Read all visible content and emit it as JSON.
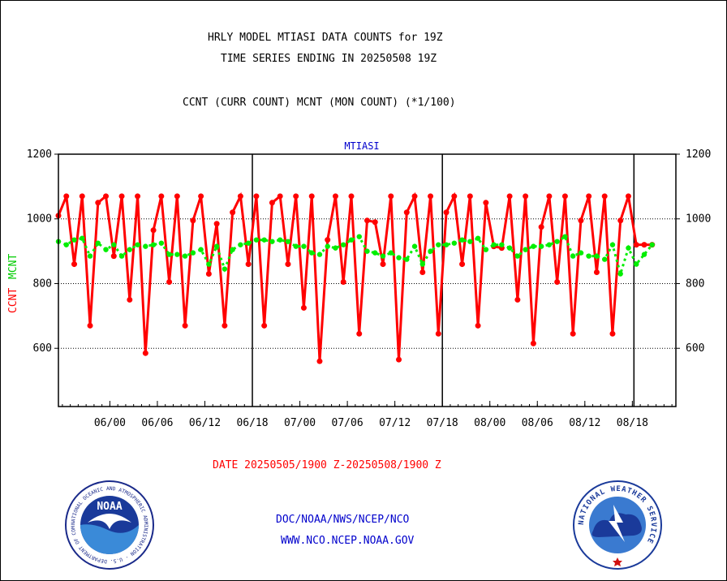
{
  "header": {
    "title_line1": "HRLY MODEL MTIASI DATA COUNTS for 19Z",
    "title_line2": "TIME SERIES ENDING IN 20250508 19Z",
    "subtitle": "CCNT (CURR COUNT) MCNT (MON COUNT) (*1/100)"
  },
  "footer": {
    "date_range": "DATE 20250505/1900 Z-20250508/1900 Z",
    "org_line": "DOC/NOAA/NWS/NCEP/NCO",
    "url_line": "WWW.NCO.NCEP.NOAA.GOV"
  },
  "logos": {
    "noaa_text": "NOAA",
    "noaa_ring": "NATIONAL OCEANIC AND ATMOSPHERIC ADMINISTRATION · U.S. DEPARTMENT OF COMMERCE",
    "nws_ring": "NATIONAL WEATHER SERVICE"
  },
  "colors": {
    "ccnt": "#ff0000",
    "mcnt": "#00ee00",
    "chart_title": "#0000cc",
    "footer_blue": "#0000cc"
  },
  "chart_data": {
    "type": "line",
    "title": "MTIASI",
    "ylabel_left": "CCNT",
    "ylabel_right": "MCNT",
    "ylim": [
      420,
      1200
    ],
    "yticks": [
      600,
      800,
      1000,
      1200
    ],
    "grid_y": [
      600,
      800,
      1000
    ],
    "x_range_hours": [
      -1.5,
      76.5
    ],
    "xtick_labels": [
      "06/00",
      "06/06",
      "06/12",
      "06/18",
      "07/00",
      "07/06",
      "07/12",
      "07/18",
      "08/00",
      "08/06",
      "08/12",
      "08/18"
    ],
    "xtick_hours": [
      5,
      11,
      17,
      23,
      29,
      35,
      41,
      47,
      53,
      59,
      65,
      71
    ],
    "day_boundary_hours": [
      23,
      47,
      71.2
    ],
    "series": [
      {
        "name": "CCNT",
        "x_hours": [
          -1.5,
          -0.5,
          0.5,
          1.5,
          2.5,
          3.5,
          4.5,
          5.5,
          6.5,
          7.5,
          8.5,
          9.5,
          10.5,
          11.5,
          12.5,
          13.5,
          14.5,
          15.5,
          16.5,
          17.5,
          18.5,
          19.5,
          20.5,
          21.5,
          22.5,
          23.5,
          24.5,
          25.5,
          26.5,
          27.5,
          28.5,
          29.5,
          30.5,
          31.5,
          32.5,
          33.5,
          34.5,
          35.5,
          36.5,
          37.5,
          38.5,
          39.5,
          40.5,
          41.5,
          42.5,
          43.5,
          44.5,
          45.5,
          46.5,
          47.5,
          48.5,
          49.5,
          50.5,
          51.5,
          52.5,
          53.5,
          54.5,
          55.5,
          56.5,
          57.5,
          58.5,
          59.5,
          60.5,
          61.5,
          62.5,
          63.5,
          64.5,
          65.5,
          66.5,
          67.5,
          68.5,
          69.5,
          70.5,
          71.5,
          72.5,
          73.5
        ],
        "values": [
          1010,
          1070,
          860,
          1070,
          670,
          1050,
          1070,
          885,
          1070,
          750,
          1070,
          585,
          965,
          1070,
          805,
          1070,
          670,
          995,
          1070,
          830,
          985,
          670,
          1020,
          1070,
          860,
          1070,
          670,
          1050,
          1070,
          860,
          1070,
          725,
          1070,
          560,
          935,
          1070,
          805,
          1070,
          645,
          995,
          990,
          860,
          1070,
          565,
          1020,
          1070,
          835,
          1070,
          645,
          1020,
          1070,
          860,
          1070,
          670,
          1050,
          915,
          910,
          1070,
          750,
          1070,
          615,
          975,
          1070,
          805,
          1070,
          645,
          995,
          1070,
          835,
          1070,
          645,
          995,
          1070,
          920,
          920,
          920
        ]
      },
      {
        "name": "MCNT",
        "x_hours": [
          -1.5,
          -0.5,
          0.5,
          1.5,
          2.5,
          3.5,
          4.5,
          5.5,
          6.5,
          7.5,
          8.5,
          9.5,
          10.5,
          11.5,
          12.5,
          13.5,
          14.5,
          15.5,
          16.5,
          17.5,
          18.5,
          19.5,
          20.5,
          21.5,
          22.5,
          23.5,
          24.5,
          25.5,
          26.5,
          27.5,
          28.5,
          29.5,
          30.5,
          31.5,
          32.5,
          33.5,
          34.5,
          35.5,
          36.5,
          37.5,
          38.5,
          39.5,
          40.5,
          41.5,
          42.5,
          43.5,
          44.5,
          45.5,
          46.5,
          47.5,
          48.5,
          49.5,
          50.5,
          51.5,
          52.5,
          53.5,
          54.5,
          55.5,
          56.5,
          57.5,
          58.5,
          59.5,
          60.5,
          61.5,
          62.5,
          63.5,
          64.5,
          65.5,
          66.5,
          67.5,
          68.5,
          69.5,
          70.5,
          71.5,
          72.5,
          73.5
        ],
        "values": [
          930,
          920,
          935,
          940,
          885,
          925,
          905,
          920,
          885,
          905,
          920,
          915,
          920,
          925,
          890,
          890,
          885,
          895,
          905,
          860,
          915,
          845,
          905,
          920,
          925,
          935,
          935,
          930,
          935,
          930,
          915,
          915,
          895,
          890,
          915,
          910,
          920,
          935,
          945,
          900,
          895,
          885,
          895,
          880,
          875,
          915,
          860,
          900,
          920,
          920,
          925,
          935,
          930,
          940,
          905,
          920,
          920,
          910,
          885,
          905,
          915,
          915,
          920,
          930,
          945,
          885,
          895,
          885,
          885,
          875,
          920,
          830,
          910,
          860,
          890,
          920
        ]
      }
    ]
  }
}
